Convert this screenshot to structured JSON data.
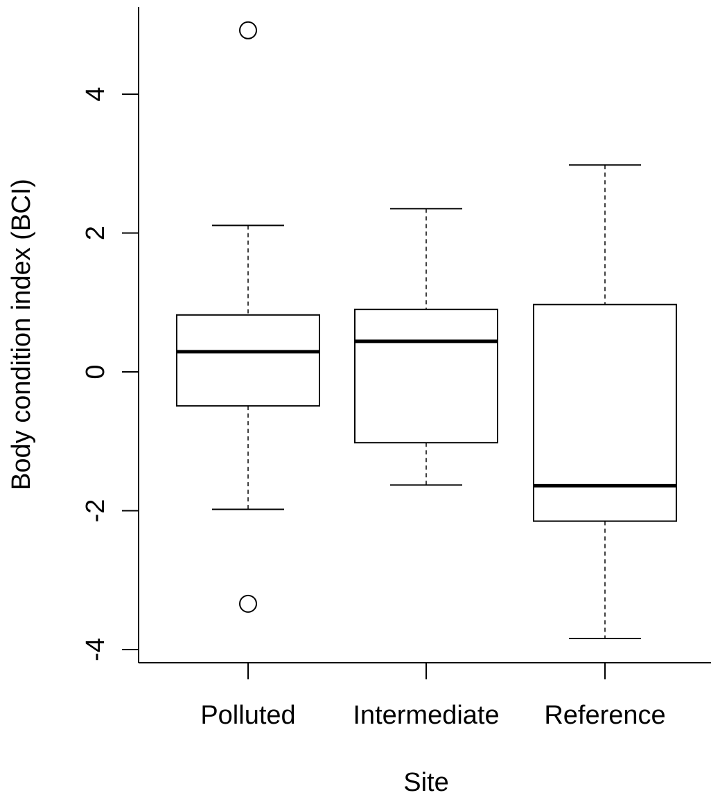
{
  "chart_data": {
    "type": "boxplot",
    "xlabel": "Site",
    "ylabel": "Body condition index (BCI)",
    "categories": [
      "Polluted",
      "Intermediate",
      "Reference"
    ],
    "ylim": [
      -4.2,
      5.3
    ],
    "yticks": [
      -4,
      -2,
      0,
      2,
      4
    ],
    "ytick_labels": [
      "-4",
      "-2",
      "0",
      "2",
      "4"
    ],
    "boxes": [
      {
        "label": "Polluted",
        "whisker_low": -1.98,
        "q1": -0.49,
        "median": 0.29,
        "q3": 0.82,
        "whisker_high": 2.11,
        "outliers": [
          4.92,
          -3.34
        ]
      },
      {
        "label": "Intermediate",
        "whisker_low": -1.63,
        "q1": -1.02,
        "median": 0.44,
        "q3": 0.9,
        "whisker_high": 2.35,
        "outliers": []
      },
      {
        "label": "Reference",
        "whisker_low": -3.84,
        "q1": -2.15,
        "median": -1.64,
        "q3": 0.97,
        "whisker_high": 2.98,
        "outliers": []
      }
    ],
    "grid": false,
    "colors": {
      "box_fill": "#ffffff",
      "stroke": "#000000"
    }
  }
}
